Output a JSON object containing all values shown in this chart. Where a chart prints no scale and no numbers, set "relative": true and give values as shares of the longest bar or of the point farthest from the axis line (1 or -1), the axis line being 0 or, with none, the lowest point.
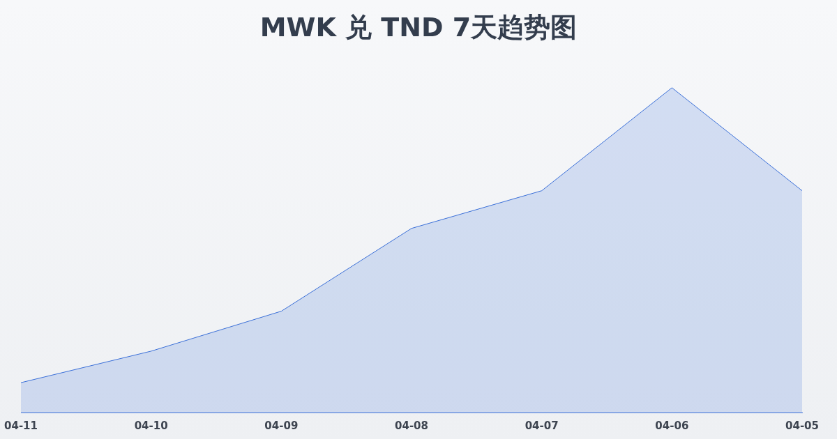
{
  "chart_data": {
    "type": "area",
    "title": "MWK 兑 TND 7天趋势图",
    "relative": true,
    "categories": [
      "04-11",
      "04-10",
      "04-09",
      "04-08",
      "04-07",
      "04-06",
      "04-05"
    ],
    "series": [
      {
        "color": "#3a6fd8",
        "values": [
          0.092,
          0.189,
          0.312,
          0.567,
          0.683,
          1,
          0.683
        ]
      }
    ]
  }
}
